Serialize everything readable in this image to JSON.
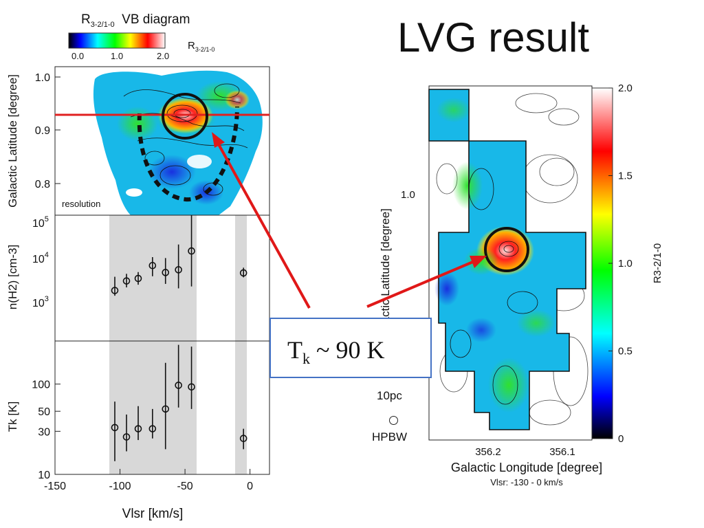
{
  "slide": {
    "title": "LVG result"
  },
  "left_panel": {
    "colorbar": {
      "caption_main": "R",
      "caption_sub": "3-2/1-0",
      "caption_suffix": "VB diagram",
      "ticks": [
        "0.0",
        "1.0",
        "2.0"
      ],
      "label_main": "R",
      "label_sub": "3-2/1-0"
    },
    "resolution_label": "resolution"
  },
  "right_panel": {
    "colorbar_label": "R3-2/1-0",
    "scalebar_label": "10pc",
    "beam_label": "HPBW",
    "caption": "Vlsr: -130 - 0 km/s"
  },
  "annotation": {
    "text_main": "T",
    "text_sub": "k",
    "text_rest": " ~ 90 K"
  },
  "chart_data": [
    {
      "type": "heatmap",
      "title": "",
      "xlabel": "",
      "ylabel": "Galactic Latitude [degree]",
      "ytick_labels": [
        "1.0",
        "0.9",
        "0.8"
      ],
      "colorbar_range": [
        0.0,
        2.0
      ],
      "colorbar_ticks": [
        "0.0",
        "1.0",
        "2.0"
      ],
      "marked_latitude": 0.93
    },
    {
      "type": "scatter",
      "title": "",
      "xlabel": "",
      "ylabel": "n(H2) [cm-3]",
      "yscale": "log",
      "ylim": [
        100,
        100000
      ],
      "ytick_labels": [
        "10^3",
        "10^4",
        "10^5"
      ],
      "x": [
        -104,
        -95,
        -86,
        -75,
        -65,
        -55,
        -45,
        -5
      ],
      "y": [
        1600,
        2700,
        3100,
        6300,
        4300,
        5000,
        14000,
        4200
      ],
      "yerr_low": [
        400,
        800,
        900,
        2800,
        2000,
        3200,
        12000,
        900
      ],
      "yerr_high": [
        1800,
        1300,
        1300,
        3700,
        5200,
        15000,
        86000,
        1400
      ]
    },
    {
      "type": "scatter",
      "title": "",
      "xlabel": "Vlsr [km/s]",
      "ylabel": "Tk [K]",
      "yscale": "log",
      "ylim": [
        10,
        300
      ],
      "ytick_labels": [
        "10",
        "30",
        "50",
        "100"
      ],
      "xlim": [
        -150,
        15
      ],
      "xtick_labels": [
        "-150",
        "-100",
        "-50",
        "0"
      ],
      "x": [
        -104,
        -95,
        -86,
        -75,
        -65,
        -55,
        -45,
        -5
      ],
      "y": [
        33,
        26,
        32,
        32,
        53,
        97,
        93,
        25
      ],
      "yerr_low": [
        19,
        8,
        8,
        7,
        34,
        42,
        40,
        6
      ],
      "yerr_high": [
        31,
        20,
        25,
        21,
        119,
        175,
        167,
        7
      ],
      "shaded_vlsr_ranges": [
        [
          -105,
          -40
        ],
        [
          -9,
          0
        ]
      ]
    },
    {
      "type": "heatmap",
      "title": "",
      "xlabel": "Galactic Longitude [degree]",
      "ylabel": "Galactic Latitude [degree]",
      "xtick_labels": [
        "356.2",
        "356.1"
      ],
      "ytick_labels": [
        "1.0"
      ],
      "colorbar_label": "R3-2/1-0",
      "colorbar_range": [
        0.0,
        2.0
      ],
      "colorbar_ticks": [
        "0",
        "0.5",
        "1.0",
        "1.5",
        "2.0"
      ],
      "colormap": [
        "#000000",
        "#0000ff",
        "#00ffff",
        "#00ff00",
        "#ffff00",
        "#ff0000",
        "#ffffff"
      ]
    }
  ]
}
